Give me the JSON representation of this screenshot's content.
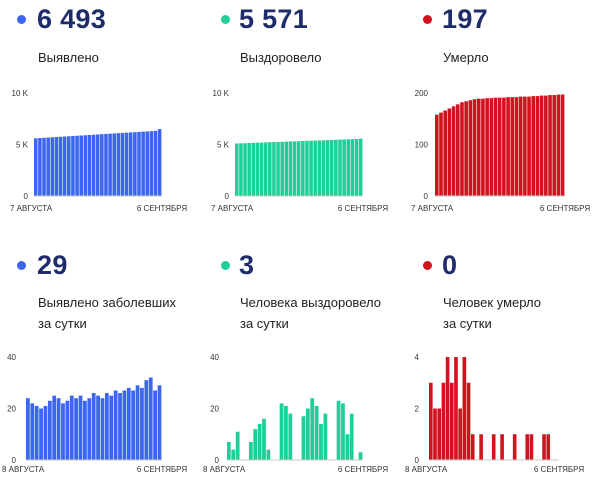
{
  "colors": {
    "blue": "#3d66f0",
    "green": "#1fcf9a",
    "red": "#d3121f",
    "number": "#1f2c6b"
  },
  "stats": [
    {
      "value": "6 493",
      "label_lines": [
        "Выявлено"
      ],
      "color": "#3d66f0",
      "chart_data": {
        "type": "bar",
        "x_start_label": "7 АВГУСТА",
        "x_end_label": "6 СЕНТЯБРЯ",
        "ylim": [
          0,
          10000
        ],
        "yticks": [
          {
            "v": 0,
            "label": "0"
          },
          {
            "v": 5000,
            "label": "5 K"
          },
          {
            "v": 10000,
            "label": "10 K"
          }
        ],
        "values": [
          5600,
          5625,
          5650,
          5675,
          5700,
          5725,
          5750,
          5775,
          5800,
          5825,
          5850,
          5875,
          5900,
          5925,
          5950,
          5975,
          6000,
          6025,
          6050,
          6075,
          6100,
          6125,
          6150,
          6175,
          6200,
          6225,
          6250,
          6275,
          6300,
          6325,
          6493
        ]
      }
    },
    {
      "value": "5 571",
      "label_lines": [
        "Выздоровело"
      ],
      "color": "#1fcf9a",
      "chart_data": {
        "type": "bar",
        "x_start_label": "7 АВГУСТА",
        "x_end_label": "6 СЕНТЯБРЯ",
        "ylim": [
          0,
          10000
        ],
        "yticks": [
          {
            "v": 0,
            "label": "0"
          },
          {
            "v": 5000,
            "label": "5 K"
          },
          {
            "v": 10000,
            "label": "10 K"
          }
        ],
        "values": [
          5100,
          5115,
          5130,
          5145,
          5160,
          5175,
          5190,
          5205,
          5220,
          5235,
          5250,
          5265,
          5280,
          5295,
          5310,
          5325,
          5340,
          5355,
          5370,
          5385,
          5400,
          5415,
          5430,
          5445,
          5460,
          5475,
          5490,
          5505,
          5520,
          5535,
          5571
        ]
      }
    },
    {
      "value": "197",
      "label_lines": [
        "Умерло"
      ],
      "color": "#d3121f",
      "chart_data": {
        "type": "bar",
        "x_start_label": "7 АВГУСТА",
        "x_end_label": "6 СЕНТЯБРЯ",
        "ylim": [
          0,
          200
        ],
        "yticks": [
          {
            "v": 0,
            "label": "0"
          },
          {
            "v": 100,
            "label": "100"
          },
          {
            "v": 200,
            "label": "200"
          }
        ],
        "values": [
          158,
          162,
          166,
          170,
          174,
          178,
          182,
          184,
          186,
          188,
          189,
          189,
          190,
          190,
          191,
          191,
          191,
          192,
          192,
          192,
          193,
          193,
          193,
          194,
          194,
          195,
          195,
          196,
          196,
          197,
          197
        ]
      }
    },
    {
      "value": "29",
      "label_lines": [
        "Выявлено заболевших",
        "за сутки"
      ],
      "color": "#3d66f0",
      "chart_data": {
        "type": "bar",
        "x_start_label": "8 АВГУСТА",
        "x_end_label": "6 СЕНТЯБРЯ",
        "ylim": [
          0,
          40
        ],
        "yticks": [
          {
            "v": 0,
            "label": "0"
          },
          {
            "v": 20,
            "label": "20"
          },
          {
            "v": 40,
            "label": "40"
          }
        ],
        "values": [
          24,
          22,
          21,
          20,
          21,
          23,
          25,
          24,
          22,
          23,
          25,
          24,
          25,
          23,
          24,
          26,
          25,
          24,
          26,
          25,
          27,
          26,
          27,
          28,
          27,
          29,
          28,
          31,
          32,
          27,
          29
        ]
      }
    },
    {
      "value": "3",
      "label_lines": [
        "Человека выздоровело",
        "за сутки"
      ],
      "color": "#1fcf9a",
      "chart_data": {
        "type": "bar",
        "x_start_label": "8 АВГУСТА",
        "x_end_label": "6 СЕНТЯБРЯ",
        "ylim": [
          0,
          40
        ],
        "yticks": [
          {
            "v": 0,
            "label": "0"
          },
          {
            "v": 20,
            "label": "20"
          },
          {
            "v": 40,
            "label": "40"
          }
        ],
        "values": [
          7,
          4,
          11,
          0,
          0,
          7,
          12,
          14,
          16,
          4,
          0,
          0,
          22,
          21,
          18,
          0,
          0,
          17,
          20,
          24,
          21,
          14,
          18,
          0,
          0,
          23,
          22,
          10,
          18,
          0,
          3
        ]
      }
    },
    {
      "value": "0",
      "label_lines": [
        "Человек умерло",
        "за сутки"
      ],
      "color": "#d3121f",
      "chart_data": {
        "type": "bar",
        "x_start_label": "8 АВГУСТА",
        "x_end_label": "6 СЕНТЯБРЯ",
        "ylim": [
          0,
          4
        ],
        "yticks": [
          {
            "v": 0,
            "label": "0"
          },
          {
            "v": 2,
            "label": "2"
          },
          {
            "v": 4,
            "label": "4"
          }
        ],
        "values": [
          3,
          2,
          2,
          3,
          4,
          3,
          4,
          2,
          4,
          3,
          1,
          0,
          1,
          0,
          0,
          1,
          0,
          1,
          0,
          0,
          1,
          0,
          0,
          1,
          1,
          0,
          0,
          1,
          1,
          0,
          0
        ]
      }
    }
  ]
}
